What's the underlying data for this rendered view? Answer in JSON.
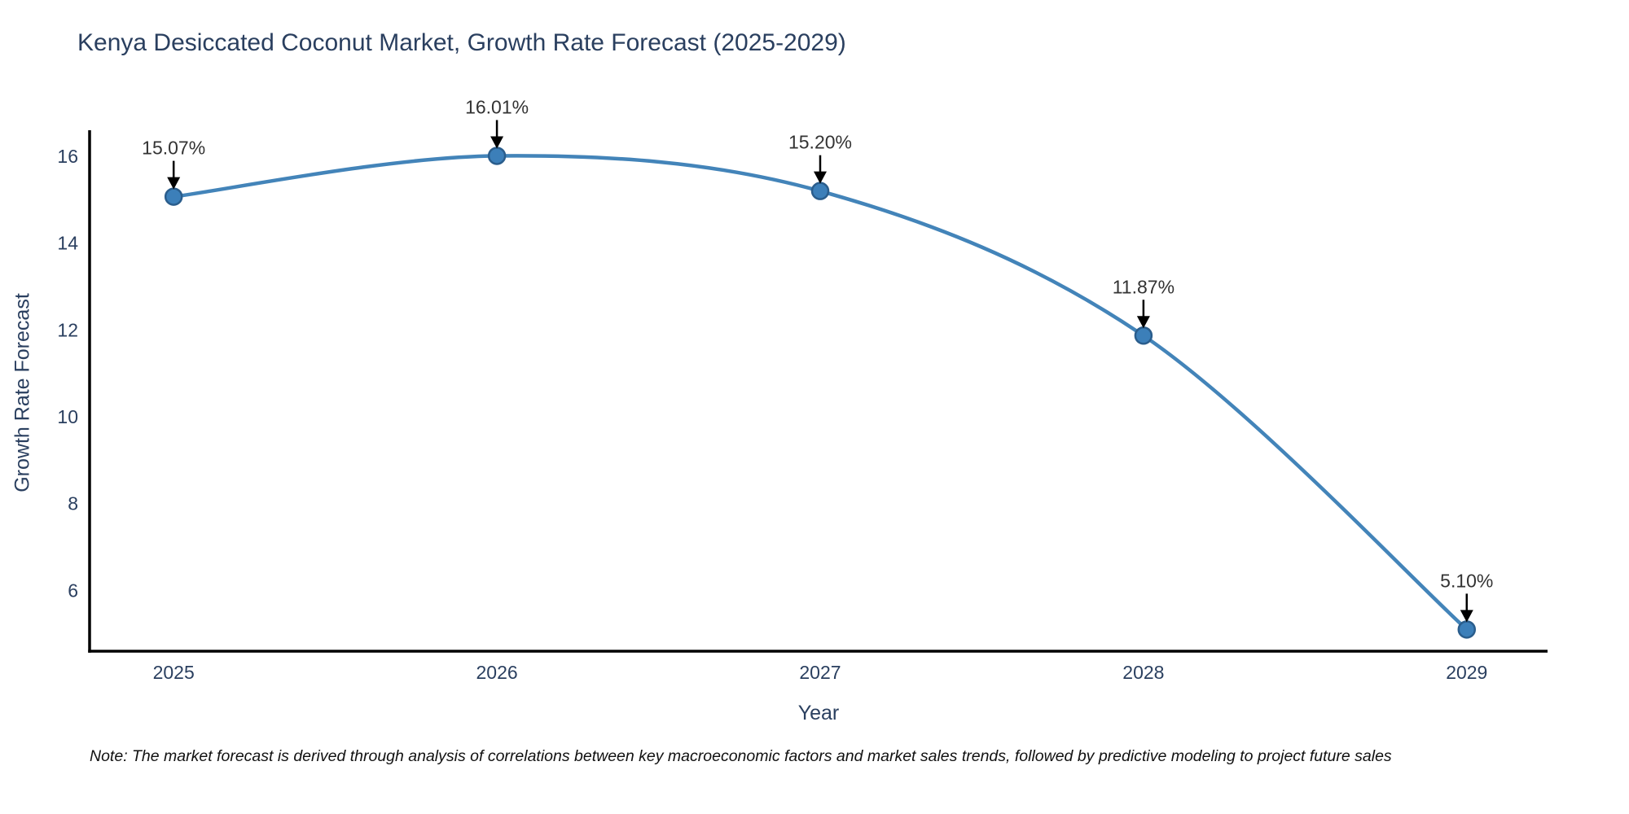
{
  "chart_data": {
    "type": "line",
    "title": "Kenya Desiccated Coconut Market, Growth Rate Forecast (2025-2029)",
    "xlabel": "Year",
    "ylabel": "Growth Rate Forecast",
    "x": [
      2025,
      2026,
      2027,
      2028,
      2029
    ],
    "y": [
      15.07,
      16.01,
      15.2,
      11.87,
      5.1
    ],
    "point_labels": [
      "15.07%",
      "16.01%",
      "15.20%",
      "11.87%",
      "5.10%"
    ],
    "xticks": [
      2025,
      2026,
      2027,
      2028,
      2029
    ],
    "yticks": [
      6,
      8,
      10,
      12,
      14,
      16
    ],
    "xlim": [
      2024.74,
      2029.25
    ],
    "ylim": [
      4.6,
      16.6
    ],
    "grid": false,
    "legend": "none",
    "line_color": "#4384b9",
    "marker_color": "#3c7fb9",
    "marker_edge_color": "#2a5d8c",
    "arrow_color": "#000000",
    "axis_color": "#000000",
    "text_color": "#2a3f5f",
    "annotation_color": "#333333",
    "background_color": "#ffffff",
    "note": "Note: The market forecast is derived through analysis of correlations between key macroeconomic factors and market sales trends, followed by predictive modeling to project future sales"
  }
}
